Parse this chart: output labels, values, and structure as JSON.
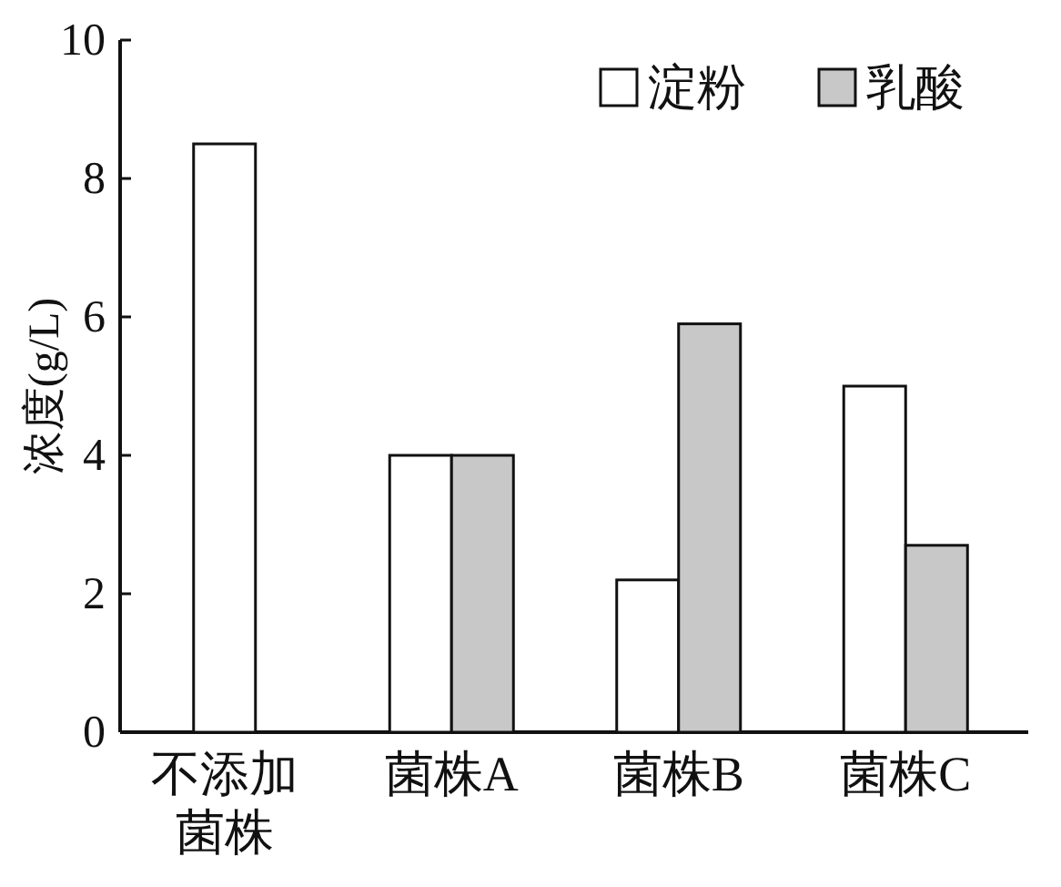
{
  "chart_data": {
    "type": "bar",
    "ylabel": "浓度(g/L)",
    "categories": [
      "不添加菌株",
      "菌株A",
      "菌株B",
      "菌株C"
    ],
    "series": [
      {
        "name": "淀粉",
        "color": "#ffffff",
        "values": [
          8.5,
          4.0,
          2.2,
          5.0
        ]
      },
      {
        "name": "乳酸",
        "color": "#c8c8c8",
        "values": [
          null,
          4.0,
          5.9,
          2.7
        ]
      }
    ],
    "ylim": [
      0,
      10
    ],
    "yticks": [
      0,
      2,
      4,
      6,
      8,
      10
    ],
    "legend": "top right",
    "grid": false
  }
}
